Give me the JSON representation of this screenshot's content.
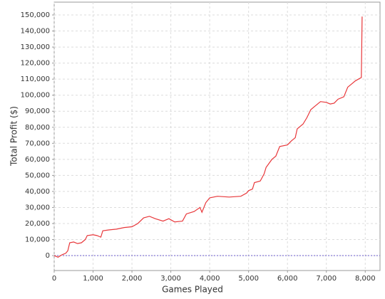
{
  "chart_data": {
    "type": "line",
    "xlabel": "Games Played",
    "ylabel": "Total Profit ($)",
    "x": [
      0,
      100,
      200,
      300,
      350,
      400,
      500,
      600,
      700,
      800,
      850,
      1000,
      1100,
      1200,
      1250,
      1400,
      1600,
      1800,
      2000,
      2150,
      2300,
      2450,
      2600,
      2800,
      2950,
      3100,
      3300,
      3400,
      3600,
      3750,
      3800,
      3900,
      4000,
      4200,
      4500,
      4800,
      4950,
      5000,
      5100,
      5150,
      5300,
      5400,
      5450,
      5600,
      5700,
      5800,
      6000,
      6100,
      6200,
      6250,
      6400,
      6500,
      6600,
      6700,
      6850,
      7000,
      7100,
      7200,
      7300,
      7450,
      7550,
      7650,
      7750,
      7900,
      7920
    ],
    "values": [
      0,
      -1000,
      500,
      1500,
      3000,
      8000,
      8500,
      7500,
      8000,
      10000,
      12500,
      13000,
      12500,
      11500,
      15500,
      16000,
      16500,
      17500,
      18000,
      20000,
      23500,
      24500,
      23000,
      21500,
      23000,
      21000,
      21500,
      26000,
      27500,
      30000,
      27000,
      33000,
      36000,
      37000,
      36500,
      37000,
      39000,
      40500,
      41500,
      45500,
      46500,
      51000,
      55000,
      60000,
      62000,
      68000,
      69000,
      71500,
      73500,
      79000,
      82000,
      86000,
      91000,
      93000,
      96000,
      95500,
      94500,
      95000,
      97500,
      99000,
      105000,
      107000,
      109000,
      111000,
      149000
    ],
    "color": "#e8373a",
    "zero_line_color": "#6a5acd",
    "xlim": [
      0,
      8380
    ],
    "ylim": [
      -9300,
      158000
    ],
    "xticks": [
      0,
      {
        "value": 1000,
        "label": "1,000"
      },
      {
        "value": 2000,
        "label": "2,000"
      },
      {
        "value": 3000,
        "label": "3,000"
      },
      {
        "value": 4000,
        "label": "4,000"
      },
      {
        "value": 5000,
        "label": "5,000"
      },
      {
        "value": 6000,
        "label": "6,000"
      },
      {
        "value": 7000,
        "label": "7,000"
      },
      {
        "value": 8000,
        "label": "8,000"
      }
    ],
    "yticks": [
      0,
      {
        "value": 10000,
        "label": "10,000"
      },
      {
        "value": 20000,
        "label": "20,000"
      },
      {
        "value": 30000,
        "label": "30,000"
      },
      {
        "value": 40000,
        "label": "40,000"
      },
      {
        "value": 50000,
        "label": "50,000"
      },
      {
        "value": 60000,
        "label": "60,000"
      },
      {
        "value": 70000,
        "label": "70,000"
      },
      {
        "value": 80000,
        "label": "80,000"
      },
      {
        "value": 90000,
        "label": "90,000"
      },
      {
        "value": 100000,
        "label": "100,000"
      },
      {
        "value": 110000,
        "label": "110,000"
      },
      {
        "value": 120000,
        "label": "120,000"
      },
      {
        "value": 130000,
        "label": "130,000"
      },
      {
        "value": 140000,
        "label": "140,000"
      },
      {
        "value": 150000,
        "label": "150,000"
      }
    ],
    "grid": true
  }
}
